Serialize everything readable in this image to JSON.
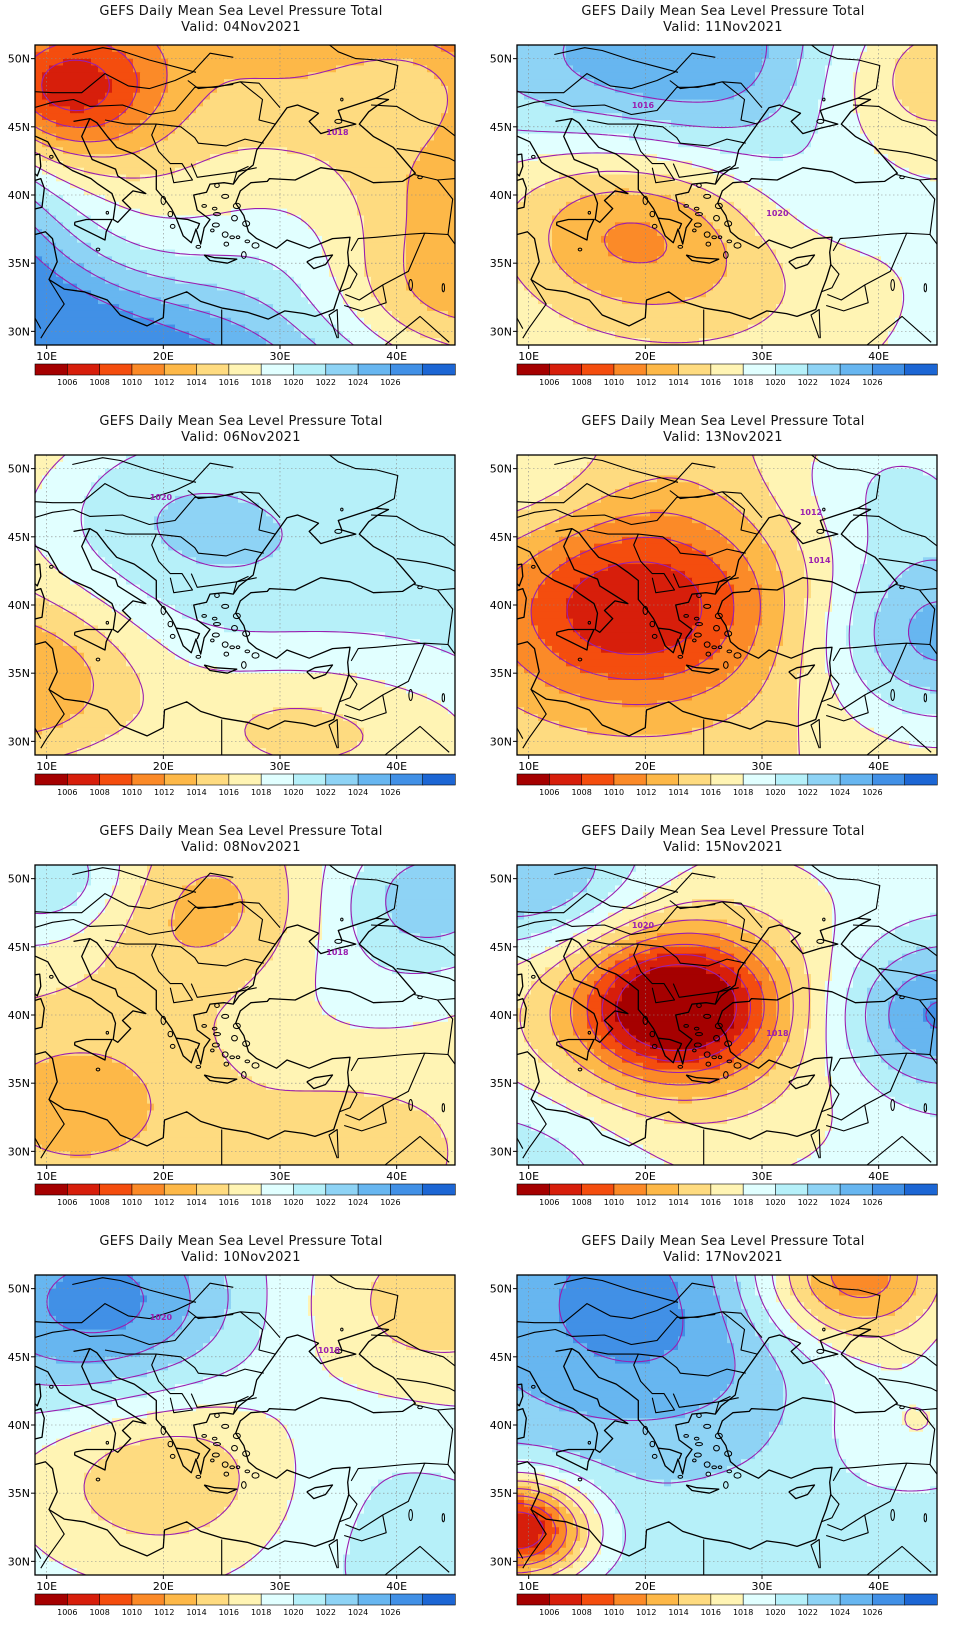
{
  "title": "GEFS Daily Mean Sea Level Pressure Total",
  "valid_prefix": "Valid:",
  "lat_labels": [
    "50N",
    "45N",
    "40N",
    "35N",
    "30N"
  ],
  "lon_labels": [
    "10E",
    "20E",
    "30E",
    "40E"
  ],
  "colorbar": {
    "labels": [
      "1006",
      "1008",
      "1010",
      "1012",
      "1014",
      "1016",
      "1018",
      "1020",
      "1022",
      "1024",
      "1026"
    ],
    "colors": [
      "#a50000",
      "#d71e0b",
      "#f44d0e",
      "#fb8a28",
      "#fdb848",
      "#fedb80",
      "#fff4b4",
      "#e1ffff",
      "#b6f0f9",
      "#8ed3f5",
      "#67b6f0",
      "#4190e6",
      "#1c66d4"
    ]
  },
  "panels": [
    {
      "date": "04Nov2021",
      "valid": "Valid: 04Nov2021",
      "contour_labels": [
        "1018"
      ]
    },
    {
      "date": "11Nov2021",
      "valid": "Valid: 11Nov2021",
      "contour_labels": [
        "1020",
        "1016"
      ]
    },
    {
      "date": "06Nov2021",
      "valid": "Valid: 06Nov2021",
      "contour_labels": [
        "1020"
      ]
    },
    {
      "date": "13Nov2021",
      "valid": "Valid: 13Nov2021",
      "contour_labels": [
        "1012",
        "1014"
      ]
    },
    {
      "date": "08Nov2021",
      "valid": "Valid: 08Nov2021",
      "contour_labels": [
        "1018"
      ]
    },
    {
      "date": "15Nov2021",
      "valid": "Valid: 15Nov2021",
      "contour_labels": [
        "1018",
        "1020"
      ]
    },
    {
      "date": "10Nov2021",
      "valid": "Valid: 10Nov2021",
      "contour_labels": [
        "1020",
        "1018"
      ]
    },
    {
      "date": "17Nov2021",
      "valid": "Valid: 17Nov2021",
      "contour_labels": []
    }
  ],
  "fields": [
    {
      "base": 1019.5,
      "gx": -1.6,
      "gy": 1.3,
      "bumps": [
        [
          0.05,
          0.15,
          -14,
          0.18
        ],
        [
          0.2,
          0.6,
          -6,
          0.25
        ],
        [
          0.95,
          0.1,
          7,
          0.2
        ],
        [
          0.65,
          0.6,
          1.2,
          0.18
        ],
        [
          0.9,
          0.85,
          -3.5,
          0.18
        ]
      ]
    },
    {
      "base": 1019,
      "gx": 0,
      "gy": 0,
      "bumps": [
        [
          0.45,
          0.05,
          7,
          0.28
        ],
        [
          0.25,
          0.6,
          -6,
          0.22
        ],
        [
          0.5,
          0.75,
          -3,
          0.3
        ],
        [
          0.7,
          0.55,
          1.5,
          0.15
        ],
        [
          0.95,
          0.1,
          -5,
          0.2
        ],
        [
          0.05,
          0.05,
          2,
          0.2
        ]
      ]
    },
    {
      "base": 1018,
      "gx": 0.5,
      "gy": 0.6,
      "bumps": [
        [
          0.3,
          0.15,
          7,
          0.35
        ],
        [
          0.0,
          0.75,
          -6,
          0.22
        ],
        [
          0.6,
          0.95,
          -5,
          0.2
        ],
        [
          1.0,
          1.0,
          -5,
          0.22
        ],
        [
          0.95,
          0.1,
          2,
          0.2
        ]
      ]
    },
    {
      "base": 1016,
      "gx": 0,
      "gy": 0,
      "bumps": [
        [
          0.25,
          0.5,
          -9,
          0.24
        ],
        [
          0.55,
          0.55,
          -2,
          0.25
        ],
        [
          1.0,
          0.6,
          9,
          0.22
        ],
        [
          0.2,
          0.0,
          -2,
          0.2
        ],
        [
          0.05,
          0.05,
          4,
          0.2
        ],
        [
          0.9,
          0.1,
          4,
          0.2
        ]
      ]
    },
    {
      "base": 1017,
      "gx": 0,
      "gy": 0,
      "bumps": [
        [
          0.4,
          0.15,
          -4,
          0.2
        ],
        [
          0.1,
          0.8,
          -4,
          0.22
        ],
        [
          0.75,
          0.4,
          1.5,
          0.2
        ],
        [
          0.05,
          0.05,
          5,
          0.15
        ],
        [
          0.95,
          0.1,
          6,
          0.18
        ],
        [
          0.75,
          0.95,
          -2,
          0.2
        ]
      ]
    },
    {
      "base": 1019,
      "gx": 0,
      "gy": 0,
      "bumps": [
        [
          0.38,
          0.47,
          -13,
          0.16
        ],
        [
          0.38,
          0.5,
          -5,
          0.32
        ],
        [
          0.05,
          0.05,
          6,
          0.18
        ],
        [
          1.0,
          0.5,
          8,
          0.18
        ],
        [
          0.0,
          1.0,
          3,
          0.2
        ]
      ]
    },
    {
      "base": 1019,
      "gx": 0,
      "gy": 0,
      "bumps": [
        [
          0.15,
          0.1,
          8,
          0.25
        ],
        [
          0.3,
          0.65,
          -5,
          0.22
        ],
        [
          0.95,
          0.1,
          -4,
          0.25
        ],
        [
          0.8,
          0.55,
          1,
          0.2
        ],
        [
          0.95,
          0.95,
          2,
          0.2
        ]
      ]
    },
    {
      "base": 1022,
      "gx": 0,
      "gy": 0,
      "bumps": [
        [
          0.3,
          0.1,
          5,
          0.3
        ],
        [
          0.8,
          0.0,
          -12,
          0.18
        ],
        [
          0.0,
          0.85,
          -16,
          0.12
        ],
        [
          0.95,
          0.5,
          -4,
          0.18
        ],
        [
          0.5,
          0.9,
          -1,
          0.25
        ]
      ]
    }
  ]
}
